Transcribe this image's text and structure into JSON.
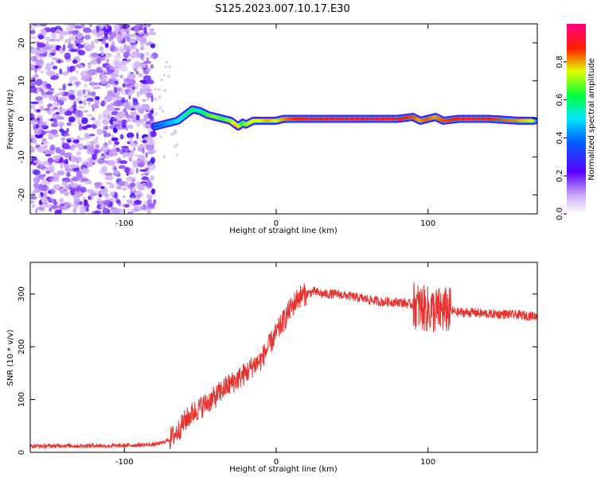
{
  "title": "S125.2023.007.10.17.E30",
  "colors": {
    "snr_line": "#e8302c",
    "axis": "#000000"
  },
  "chart_data": [
    {
      "type": "heatmap",
      "xlabel": "Height of straight line (km)",
      "ylabel": "Frequency (Hz)",
      "xlim": [
        -162,
        172
      ],
      "ylim": [
        -25,
        25
      ],
      "xticks": [
        "-100",
        "0",
        "100"
      ],
      "xtick_values": [
        -100,
        0,
        100
      ],
      "yticks": [
        "-20",
        "-10",
        "0",
        "10",
        "20"
      ],
      "ytick_values": [
        -20,
        -10,
        0,
        10,
        20
      ],
      "colorbar": {
        "label": "Normalized spectral amplitude",
        "range": [
          0,
          1
        ],
        "ticks": [
          "0.0",
          "0.2",
          "0.4",
          "0.6",
          "0.8"
        ],
        "tick_values": [
          0.0,
          0.2,
          0.4,
          0.6,
          0.8
        ],
        "colormap": "rainbow"
      },
      "ridge": {
        "x": [
          -80,
          -75,
          -70,
          -65,
          -60,
          -55,
          -50,
          -45,
          -40,
          -35,
          -30,
          -25,
          -22,
          -20,
          -15,
          -10,
          -5,
          0,
          5,
          10,
          20,
          40,
          60,
          80,
          90,
          95,
          100,
          105,
          110,
          120,
          140,
          160,
          170
        ],
        "y": [
          -2,
          -1.5,
          -1,
          -0.5,
          1,
          2.5,
          2,
          1,
          0.5,
          0,
          -0.5,
          -2,
          -1,
          -1.5,
          -0.5,
          -0.5,
          -0.5,
          -0.5,
          0,
          0,
          0,
          0,
          0,
          0,
          0.5,
          -0.5,
          0,
          0.5,
          -0.5,
          0,
          0,
          -0.5,
          -0.5
        ],
        "amplitude": [
          0.35,
          0.4,
          0.45,
          0.5,
          0.55,
          0.6,
          0.55,
          0.65,
          0.7,
          0.65,
          0.7,
          0.8,
          0.6,
          0.7,
          0.75,
          0.75,
          0.8,
          0.75,
          0.8,
          0.85,
          0.9,
          0.9,
          0.92,
          0.9,
          0.85,
          0.8,
          0.85,
          0.8,
          0.85,
          0.88,
          0.88,
          0.8,
          0.75
        ]
      },
      "noise_region_x": [
        -162,
        -80
      ]
    },
    {
      "type": "line",
      "xlabel": "Height of straight line (km)",
      "ylabel": "SNR (10 * v/v)",
      "xlim": [
        -162,
        172
      ],
      "ylim": [
        0,
        360
      ],
      "xticks": [
        "-100",
        "0",
        "100"
      ],
      "xtick_values": [
        -100,
        0,
        100
      ],
      "yticks": [
        "0",
        "100",
        "200",
        "300"
      ],
      "ytick_values": [
        0,
        100,
        200,
        300
      ],
      "series": [
        {
          "x": [
            -162,
            -150,
            -140,
            -130,
            -120,
            -110,
            -100,
            -90,
            -80,
            -75,
            -70,
            -65,
            -60,
            -55,
            -50,
            -45,
            -40,
            -35,
            -30,
            -25,
            -20,
            -15,
            -10,
            -5,
            0,
            5,
            10,
            15,
            20,
            25,
            30,
            40,
            50,
            60,
            70,
            80,
            90,
            95,
            100,
            105,
            110,
            115,
            120,
            130,
            140,
            150,
            160,
            172
          ],
          "y": [
            12,
            12,
            13,
            12,
            13,
            12,
            13,
            14,
            15,
            18,
            25,
            40,
            60,
            75,
            85,
            95,
            105,
            120,
            130,
            140,
            150,
            165,
            175,
            200,
            225,
            250,
            275,
            295,
            300,
            305,
            300,
            300,
            295,
            290,
            285,
            285,
            280,
            275,
            270,
            268,
            270,
            268,
            265,
            265,
            262,
            262,
            260,
            258
          ]
        }
      ]
    }
  ]
}
